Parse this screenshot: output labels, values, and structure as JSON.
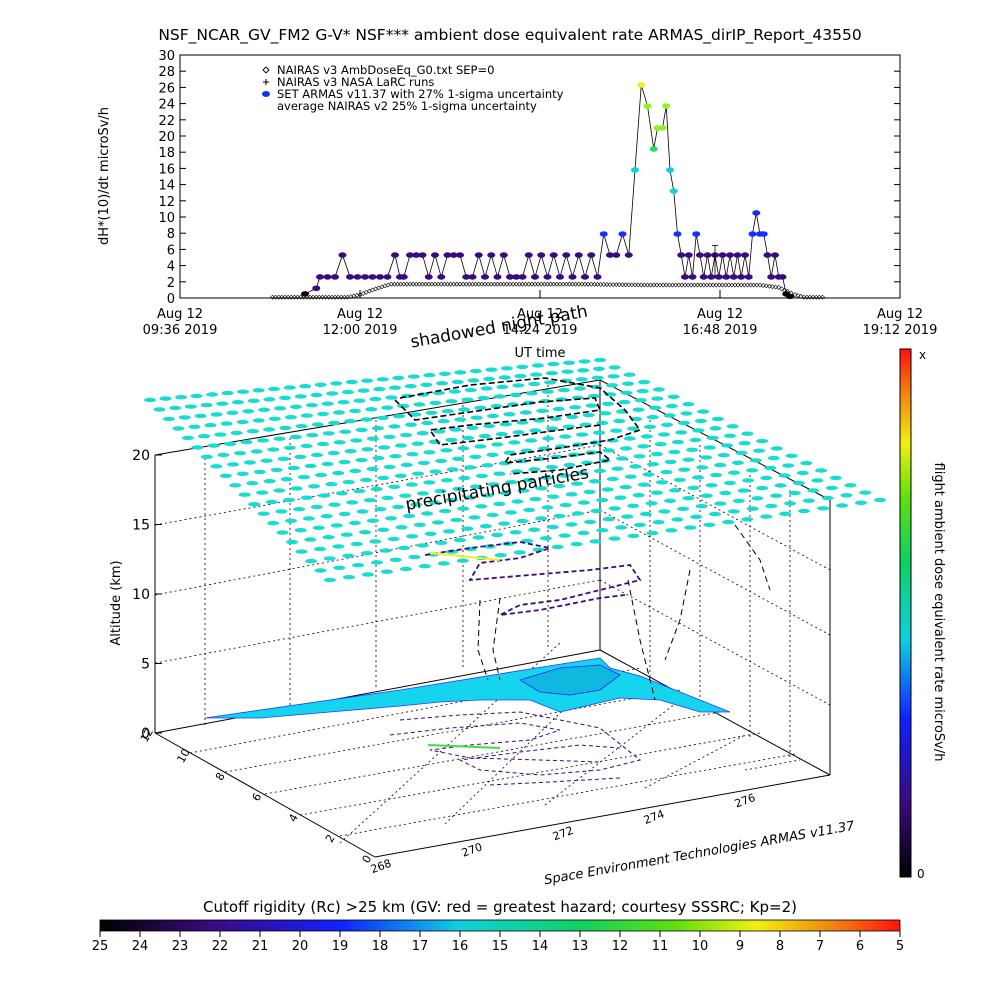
{
  "title": "NSF_NCAR_GV_FM2 G-V* NSF*** ambient dose equivalent rate ARMAS_dirIP_Report_43550",
  "chart_data": [
    {
      "type": "scatter",
      "ylabel": "dH*(10)/dt microSv/h",
      "xlabel": "UT time",
      "xlim_minutes": [
        576,
        1152
      ],
      "ylim": [
        0,
        30
      ],
      "yticks": [
        0,
        2,
        4,
        6,
        8,
        10,
        12,
        14,
        16,
        18,
        20,
        22,
        24,
        26,
        28,
        30
      ],
      "xticks": [
        {
          "minute": 576,
          "line1": "Aug 12",
          "line2": "09:36 2019"
        },
        {
          "minute": 720,
          "line1": "Aug 12",
          "line2": "12:00 2019"
        },
        {
          "minute": 864,
          "line1": "Aug 12",
          "line2": "14:24 2019"
        },
        {
          "minute": 1008,
          "line1": "Aug 12",
          "line2": "16:48 2019"
        },
        {
          "minute": 1152,
          "line1": "Aug 12",
          "line2": "19:12 2019"
        }
      ],
      "legend": [
        {
          "symbol": "diamond",
          "label": "NAIRAS v3 AmbDoseEq_G0.txt SEP=0"
        },
        {
          "symbol": "plus",
          "label": "NAIRAS v3 NASA LaRC runs"
        },
        {
          "symbol": "dot",
          "color": "#1430ff",
          "label": "SET ARMAS v11.37 with 27% 1-sigma uncertainty"
        },
        {
          "symbol": "none",
          "label": "average NAIRAS v2 25% 1-sigma uncertainty"
        }
      ],
      "series": [
        {
          "name": "SET ARMAS v11.37 with 27% 1-sigma uncertainty",
          "x": [
            676,
            685,
            688,
            694,
            700,
            706,
            712,
            718,
            724,
            730,
            736,
            742,
            748,
            752,
            755,
            760,
            765,
            770,
            775,
            780,
            785,
            790,
            795,
            800,
            805,
            810,
            815,
            820,
            825,
            830,
            835,
            840,
            845,
            850,
            855,
            860,
            865,
            870,
            875,
            880,
            885,
            890,
            895,
            900,
            905,
            910,
            915,
            920,
            925,
            930,
            935,
            940,
            945,
            950,
            955,
            958,
            962,
            965,
            968,
            971,
            974,
            977,
            980,
            983,
            986,
            989,
            992,
            995,
            998,
            1001,
            1004,
            1007,
            1010,
            1013,
            1016,
            1019,
            1022,
            1025,
            1028,
            1031,
            1034,
            1037,
            1040,
            1043,
            1046,
            1049,
            1052,
            1055,
            1058,
            1061,
            1064
          ],
          "y": [
            0.5,
            1.2,
            2.6,
            2.6,
            2.6,
            5.3,
            2.6,
            2.6,
            2.6,
            2.6,
            2.6,
            2.6,
            5.3,
            2.6,
            2.6,
            5.3,
            5.3,
            5.3,
            2.6,
            5.3,
            2.6,
            5.3,
            5.3,
            5.3,
            2.6,
            2.6,
            5.3,
            2.6,
            5.3,
            2.6,
            5.3,
            2.6,
            2.6,
            2.6,
            5.3,
            2.6,
            5.3,
            2.6,
            5.3,
            2.6,
            5.3,
            2.6,
            5.3,
            2.6,
            5.3,
            2.6,
            7.9,
            5.3,
            5.3,
            7.9,
            5.3,
            15.8,
            26.3,
            23.7,
            18.4,
            21.0,
            21.0,
            23.7,
            15.8,
            13.2,
            7.9,
            5.3,
            2.6,
            5.3,
            2.6,
            7.9,
            5.3,
            2.6,
            5.3,
            2.6,
            5.3,
            2.6,
            5.3,
            2.6,
            5.3,
            2.6,
            5.3,
            2.6,
            5.3,
            2.6,
            7.9,
            10.5,
            7.9,
            7.9,
            5.3,
            2.6,
            5.3,
            2.6,
            2.6,
            0.5,
            0.2
          ]
        },
        {
          "name": "NAIRAS v3 AmbDoseEq_G0.txt SEP=0",
          "x": [
            650,
            670,
            690,
            710,
            720,
            730,
            740,
            745,
            750,
            760,
            770,
            800,
            850,
            900,
            950,
            1000,
            1040,
            1055,
            1062,
            1068,
            1075,
            1090
          ],
          "y": [
            0.1,
            0.1,
            0.1,
            0.1,
            0.4,
            1.0,
            1.5,
            1.7,
            1.7,
            1.7,
            1.7,
            1.7,
            1.7,
            1.7,
            1.6,
            1.6,
            1.6,
            1.3,
            0.8,
            0.4,
            0.1,
            0.1
          ]
        }
      ]
    },
    {
      "type": "scatter",
      "zlabel": "Altitude (km)",
      "zticks": [
        0,
        5,
        10,
        15,
        20
      ],
      "xticks": [
        "268",
        "270",
        "272",
        "274",
        "276"
      ],
      "yticks": [
        "0",
        "2",
        "4",
        "6",
        "8",
        "10",
        "12"
      ],
      "annotations": [
        "shadowed night path",
        "precipitating particles"
      ]
    }
  ],
  "colorbar_right": {
    "label": "flight ambient dose equivalent rate microSv/h",
    "top_label": "x",
    "bottom_label": "0"
  },
  "colorbar_bottom": {
    "title": "Cutoff rigidity (Rc) >25 km (GV: red = greatest hazard; courtesy SSSRC; Kp=2)",
    "ticks": [
      "25",
      "24",
      "23",
      "22",
      "21",
      "20",
      "19",
      "18",
      "17",
      "16",
      "15",
      "14",
      "13",
      "12",
      "11",
      "10",
      "9",
      "8",
      "7",
      "6",
      "5"
    ]
  },
  "credit": "Space Environment Technologies ARMAS v11.37"
}
